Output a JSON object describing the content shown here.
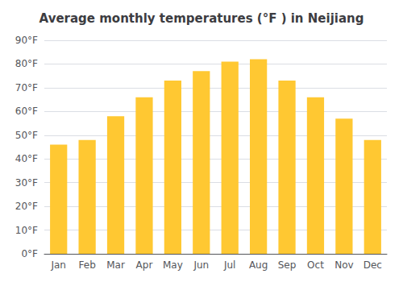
{
  "chart_data": {
    "type": "bar",
    "title": "Average monthly temperatures (°F ) in Neijiang",
    "categories": [
      "Jan",
      "Feb",
      "Mar",
      "Apr",
      "May",
      "Jun",
      "Jul",
      "Aug",
      "Sep",
      "Oct",
      "Nov",
      "Dec"
    ],
    "values": [
      46,
      48,
      58,
      66,
      73,
      77,
      81,
      82,
      73,
      66,
      57,
      48
    ],
    "color": "#FFC832",
    "ylim": [
      0,
      90
    ],
    "yticks": [
      {
        "value": 0,
        "label": "0°F"
      },
      {
        "value": 10,
        "label": "10°F"
      },
      {
        "value": 20,
        "label": "20°F"
      },
      {
        "value": 30,
        "label": "30°F"
      },
      {
        "value": 40,
        "label": "40°F"
      },
      {
        "value": 50,
        "label": "50°F"
      },
      {
        "value": 60,
        "label": "60°F"
      },
      {
        "value": 70,
        "label": "70°F"
      },
      {
        "value": 80,
        "label": "80°F"
      },
      {
        "value": 90,
        "label": "90°F"
      }
    ],
    "grid": true
  }
}
